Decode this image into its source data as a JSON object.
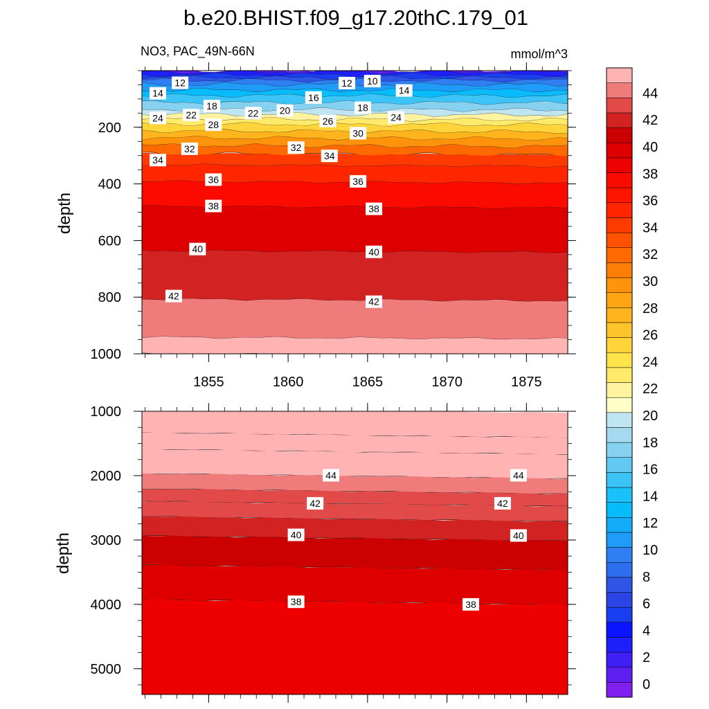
{
  "chart_data": {
    "type": "contour",
    "title": "b.e20.BHIST.f09_g17.20thC.179_01",
    "variable_label": "NO3, PAC_49N-66N",
    "units_label": "mmol/m^3",
    "xlabel": "",
    "ylabel": "depth",
    "x_range": [
      1850.8,
      1877.6
    ],
    "x_ticks": [
      "1855",
      "1860",
      "1865",
      "1870",
      "1875"
    ],
    "x_tick_values": [
      1855,
      1860,
      1865,
      1870,
      1875
    ],
    "colorbar": {
      "levels": [
        0,
        2,
        4,
        6,
        8,
        10,
        12,
        14,
        16,
        18,
        20,
        22,
        24,
        26,
        28,
        30,
        32,
        34,
        36,
        38,
        40,
        42,
        44
      ],
      "labels": [
        "0",
        "2",
        "4",
        "6",
        "8",
        "10",
        "12",
        "14",
        "16",
        "18",
        "20",
        "22",
        "24",
        "26",
        "28",
        "30",
        "32",
        "34",
        "36",
        "38",
        "40",
        "42",
        "44"
      ],
      "colors": [
        "#7f1ff0",
        "#5f1ff0",
        "#3f1ff6",
        "#1f1ffc",
        "#0a14ff",
        "#1a3ff0",
        "#2a44e6",
        "#2f55e6",
        "#2d6eee",
        "#2f7ff2",
        "#1f9cf8",
        "#12acfa",
        "#08bcfc",
        "#19c0fa",
        "#3cc4f6",
        "#62c9f2",
        "#86d1f0",
        "#a4d9f0",
        "#bfe4f2",
        "#ffffc6",
        "#fff3a0",
        "#ffea6a",
        "#ffe34a",
        "#ffd43a",
        "#ffc62c",
        "#ffb41e",
        "#ffa514",
        "#ff940c",
        "#ff7f06",
        "#ff6a00",
        "#ff5200",
        "#ff3a00",
        "#ff2600",
        "#ff1400",
        "#fb0a00",
        "#ee0000",
        "#de0000",
        "#cc0000",
        "#d22222",
        "#e24a4a",
        "#f07b7b",
        "#ffb3b3"
      ]
    },
    "panels": [
      {
        "name": "upper",
        "ylim": [
          0,
          1000
        ],
        "y_ticks": [
          "200",
          "400",
          "600",
          "800",
          "1000"
        ],
        "y_tick_values": [
          200,
          400,
          600,
          800,
          1000
        ],
        "contour_labels": [
          {
            "text": "12",
            "x": 1853.2,
            "y": 43
          },
          {
            "text": "14",
            "x": 1851.8,
            "y": 80
          },
          {
            "text": "10",
            "x": 1865.3,
            "y": 37
          },
          {
            "text": "12",
            "x": 1863.7,
            "y": 44
          },
          {
            "text": "14",
            "x": 1867.3,
            "y": 70
          },
          {
            "text": "16",
            "x": 1861.6,
            "y": 95
          },
          {
            "text": "18",
            "x": 1855.2,
            "y": 125
          },
          {
            "text": "18",
            "x": 1864.7,
            "y": 131
          },
          {
            "text": "22",
            "x": 1853.9,
            "y": 157
          },
          {
            "text": "22",
            "x": 1857.8,
            "y": 150
          },
          {
            "text": "20",
            "x": 1859.8,
            "y": 141
          },
          {
            "text": "24",
            "x": 1851.8,
            "y": 167
          },
          {
            "text": "24",
            "x": 1866.8,
            "y": 165
          },
          {
            "text": "28",
            "x": 1855.3,
            "y": 191
          },
          {
            "text": "26",
            "x": 1862.5,
            "y": 178
          },
          {
            "text": "30",
            "x": 1864.4,
            "y": 221
          },
          {
            "text": "32",
            "x": 1853.8,
            "y": 276
          },
          {
            "text": "32",
            "x": 1860.5,
            "y": 272
          },
          {
            "text": "34",
            "x": 1851.8,
            "y": 316
          },
          {
            "text": "34",
            "x": 1862.6,
            "y": 301
          },
          {
            "text": "36",
            "x": 1855.3,
            "y": 385
          },
          {
            "text": "36",
            "x": 1864.4,
            "y": 391
          },
          {
            "text": "38",
            "x": 1855.3,
            "y": 478
          },
          {
            "text": "38",
            "x": 1865.4,
            "y": 488
          },
          {
            "text": "40",
            "x": 1854.3,
            "y": 630
          },
          {
            "text": "40",
            "x": 1865.4,
            "y": 640
          },
          {
            "text": "42",
            "x": 1852.8,
            "y": 796
          },
          {
            "text": "42",
            "x": 1865.4,
            "y": 816
          }
        ]
      },
      {
        "name": "lower",
        "ylim": [
          1000,
          5400
        ],
        "y_ticks": [
          "1000",
          "2000",
          "3000",
          "4000",
          "5000"
        ],
        "y_tick_values": [
          1000,
          2000,
          3000,
          4000,
          5000
        ],
        "contour_labels": [
          {
            "text": "44",
            "x": 1862.7,
            "y": 1995
          },
          {
            "text": "44",
            "x": 1874.5,
            "y": 1995
          },
          {
            "text": "42",
            "x": 1861.7,
            "y": 2430
          },
          {
            "text": "42",
            "x": 1873.5,
            "y": 2430
          },
          {
            "text": "40",
            "x": 1860.5,
            "y": 2920
          },
          {
            "text": "40",
            "x": 1874.5,
            "y": 2930
          },
          {
            "text": "38",
            "x": 1860.5,
            "y": 3960
          },
          {
            "text": "38",
            "x": 1871.5,
            "y": 4000
          }
        ]
      }
    ]
  }
}
